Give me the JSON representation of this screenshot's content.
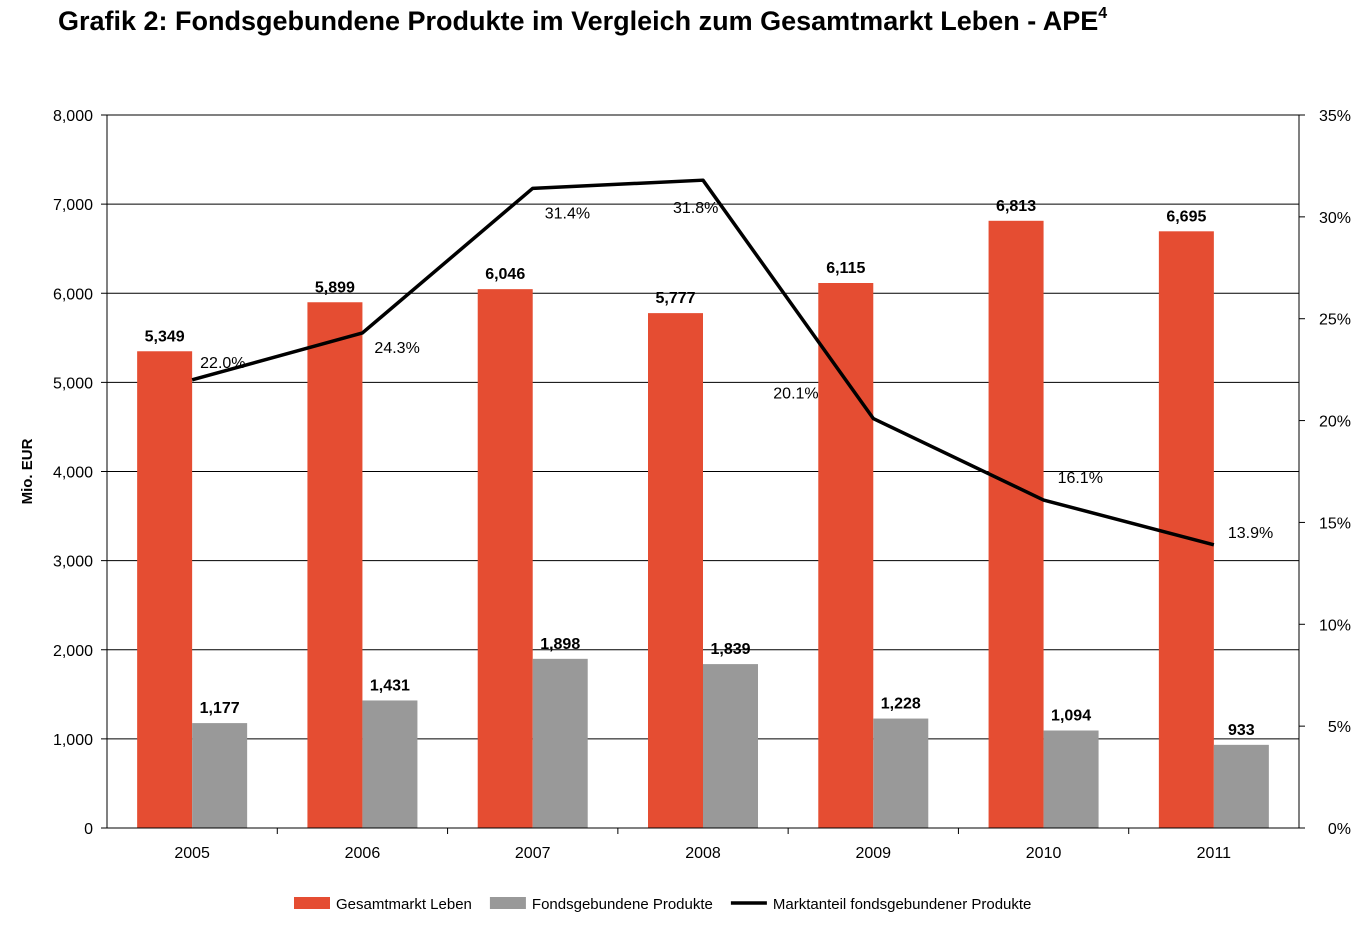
{
  "title": "Grafik 2: Fondsgebundene Produkte im Vergleich zum Gesamtmarkt Leben - APE",
  "title_sup": "4",
  "chart_data": {
    "type": "bar",
    "categories": [
      "2005",
      "2006",
      "2007",
      "2008",
      "2009",
      "2010",
      "2011"
    ],
    "ylabel": "Mio. EUR",
    "ylim": [
      0,
      8000
    ],
    "y_ticks": [
      "0",
      "1,000",
      "2,000",
      "3,000",
      "4,000",
      "5,000",
      "6,000",
      "7,000",
      "8,000"
    ],
    "y2lim": [
      0,
      35
    ],
    "y2_ticks": [
      "0%",
      "5%",
      "10%",
      "15%",
      "20%",
      "25%",
      "30%",
      "35%"
    ],
    "grid": true,
    "legend_position": "bottom",
    "series": [
      {
        "name": "Gesamtmarkt Leben",
        "type": "bar",
        "axis": "left",
        "color": "#e54d32",
        "values": [
          5349,
          5899,
          6046,
          5777,
          6115,
          6813,
          6695
        ],
        "labels": [
          "5,349",
          "5,899",
          "6,046",
          "5,777",
          "6,115",
          "6,813",
          "6,695"
        ]
      },
      {
        "name": "Fondsgebundene Produkte",
        "type": "bar",
        "axis": "left",
        "color": "#999999",
        "values": [
          1177,
          1431,
          1898,
          1839,
          1228,
          1094,
          933
        ],
        "labels": [
          "1,177",
          "1,431",
          "1,898",
          "1,839",
          "1,228",
          "1,094",
          "933"
        ]
      },
      {
        "name": "Marktanteil fondsgebundener Produkte",
        "type": "line",
        "axis": "right",
        "color": "#000000",
        "values": [
          22.0,
          24.3,
          31.4,
          31.8,
          20.1,
          16.1,
          13.9
        ],
        "labels": [
          "22.0%",
          "24.3%",
          "31.4%",
          "31.8%",
          "20.1%",
          "16.1%",
          "13.9%"
        ]
      }
    ]
  }
}
